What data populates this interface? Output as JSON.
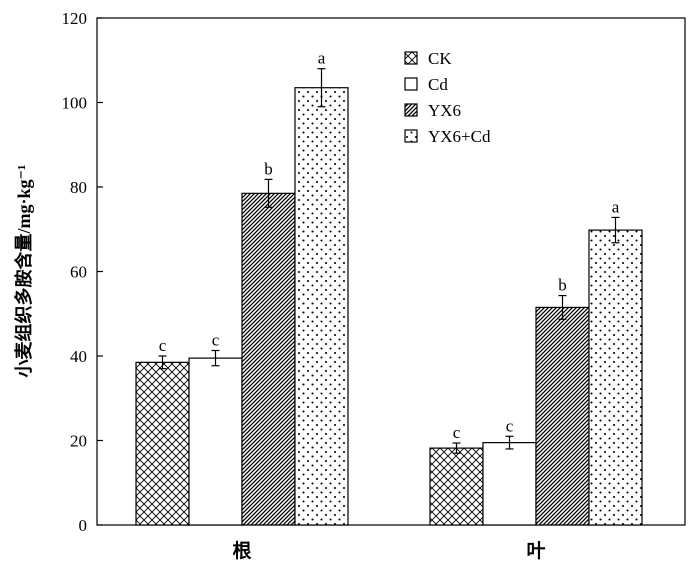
{
  "chart_data": {
    "type": "bar",
    "title": "",
    "xlabel": "",
    "ylabel": "小麦组织多胺含量/mg·kg⁻¹",
    "ylim": [
      0,
      120
    ],
    "yticks": [
      0,
      20,
      40,
      60,
      80,
      100,
      120
    ],
    "categories": [
      "根",
      "叶"
    ],
    "grid": false,
    "legend_position": "top-right",
    "series": [
      {
        "name": "CK",
        "pattern": "crosshatch",
        "values": [
          38.5,
          18.2
        ],
        "errors": [
          1.5,
          1.2
        ],
        "labels": [
          "c",
          "c"
        ]
      },
      {
        "name": "Cd",
        "pattern": "none",
        "values": [
          39.5,
          19.5
        ],
        "errors": [
          1.8,
          1.5
        ],
        "labels": [
          "c",
          "c"
        ]
      },
      {
        "name": "YX6",
        "pattern": "diagonal",
        "values": [
          78.5,
          51.5
        ],
        "errors": [
          3.3,
          2.8
        ],
        "labels": [
          "b",
          "b"
        ]
      },
      {
        "name": "YX6+Cd",
        "pattern": "dots",
        "values": [
          103.5,
          69.8
        ],
        "errors": [
          4.5,
          3.0
        ],
        "labels": [
          "a",
          "a"
        ]
      }
    ]
  }
}
